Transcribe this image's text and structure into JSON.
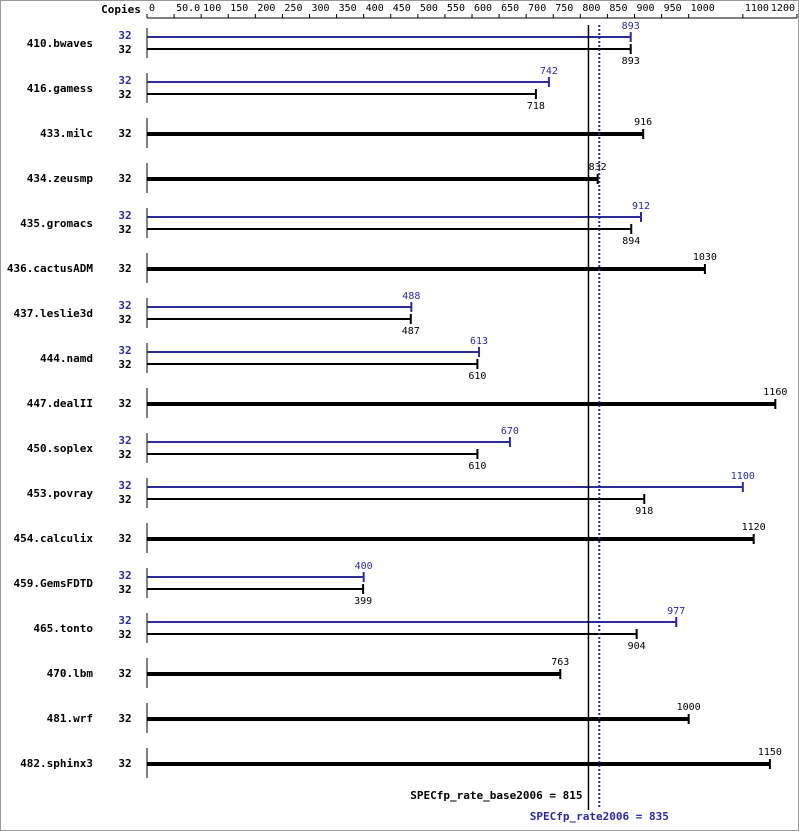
{
  "chart_data": {
    "type": "bar",
    "orientation": "horizontal",
    "copies_header": "Copies",
    "categories": [
      "410.bwaves",
      "416.gamess",
      "433.milc",
      "434.zeusmp",
      "435.gromacs",
      "436.cactusADM",
      "437.leslie3d",
      "444.namd",
      "447.dealII",
      "450.soplex",
      "453.povray",
      "454.calculix",
      "459.GemsFDTD",
      "465.tonto",
      "470.lbm",
      "481.wrf",
      "482.sphinx3"
    ],
    "series": [
      {
        "color": "#2b2b9a",
        "copies": [
          32,
          32,
          null,
          null,
          32,
          null,
          32,
          32,
          null,
          32,
          32,
          null,
          32,
          32,
          null,
          null,
          null
        ],
        "values": [
          893,
          742,
          null,
          null,
          912,
          null,
          488,
          613,
          null,
          670,
          1100,
          null,
          400,
          977,
          null,
          null,
          null
        ]
      },
      {
        "color": "#000000",
        "copies": [
          32,
          32,
          32,
          32,
          32,
          32,
          32,
          32,
          32,
          32,
          32,
          32,
          32,
          32,
          32,
          32,
          32
        ],
        "values": [
          893,
          718,
          916,
          832,
          894,
          1030,
          487,
          610,
          1160,
          610,
          918,
          1120,
          399,
          904,
          763,
          1000,
          1150
        ]
      }
    ],
    "xlim": [
      0,
      1200
    ],
    "xticks": [
      0,
      {
        "value": 50,
        "label": "50.0"
      },
      100,
      150,
      200,
      250,
      300,
      350,
      400,
      450,
      500,
      550,
      600,
      650,
      700,
      750,
      800,
      850,
      900,
      950,
      1000,
      1100,
      1200
    ],
    "reference_lines": [
      {
        "label": "SPECfp_rate_base2006 = 815",
        "value": 815,
        "color": "#000000",
        "style": "solid"
      },
      {
        "label": "SPECfp_rate2006 = 835",
        "value": 835,
        "color": "#2b2b9a",
        "style": "dotted"
      }
    ]
  }
}
